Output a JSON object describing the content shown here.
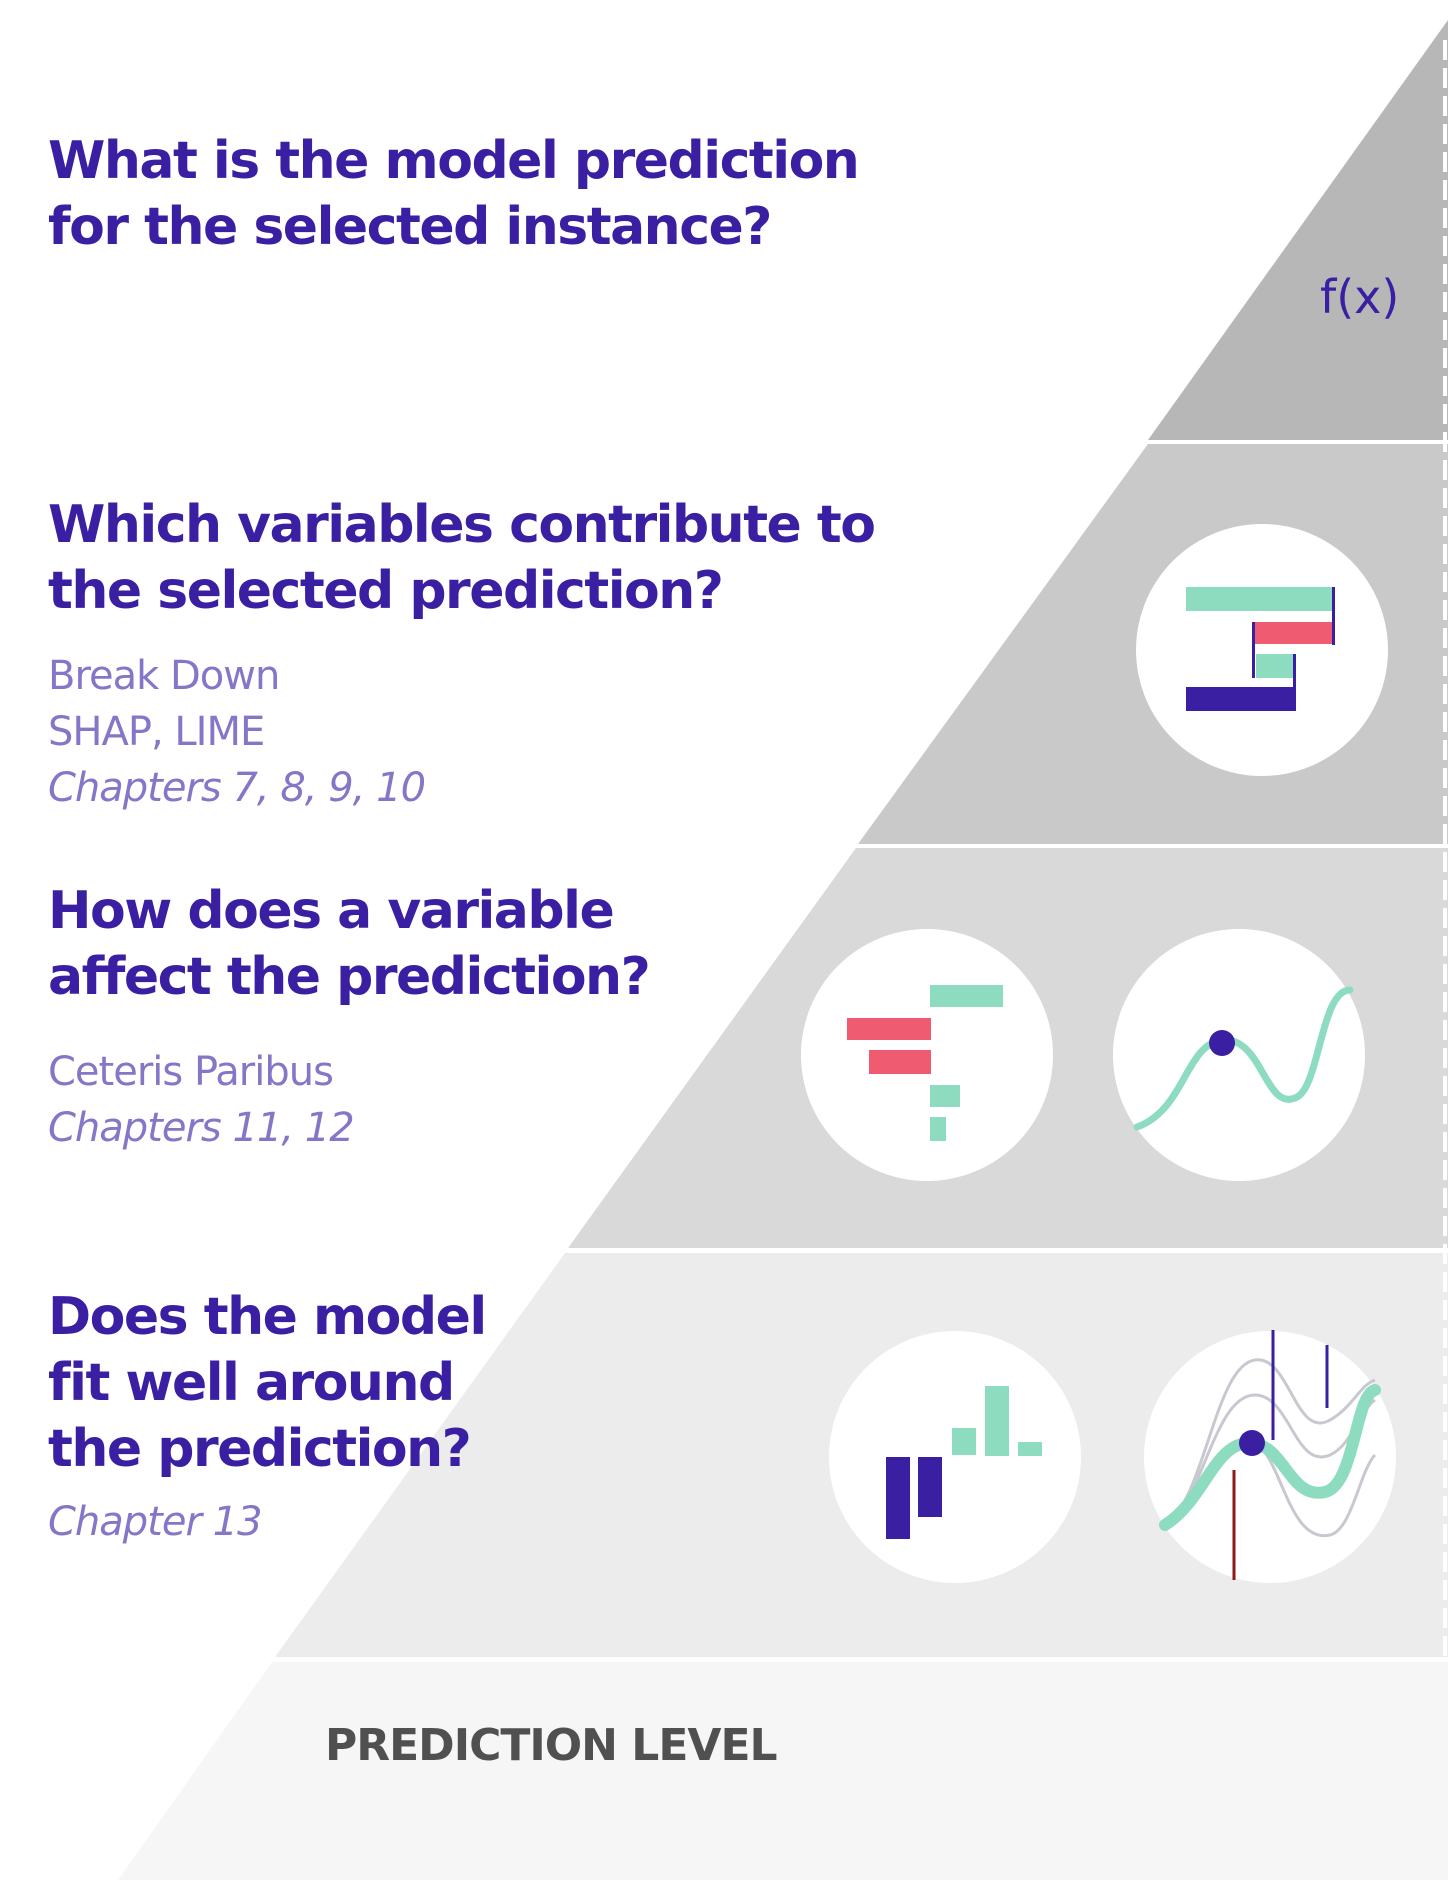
{
  "levels": [
    {
      "question_lines": [
        "What is the model prediction",
        "for the selected instance?"
      ],
      "symbol": "f(x)"
    },
    {
      "question_lines": [
        "Which variables contribute to",
        "the selected prediction?"
      ],
      "methods": [
        "Break Down",
        "SHAP, LIME"
      ],
      "chapters": "Chapters 7, 8, 9, 10",
      "icons": [
        "break-down-plot-icon"
      ]
    },
    {
      "question_lines": [
        "How does a variable",
        "affect the prediction?"
      ],
      "methods": [
        "Ceteris Paribus"
      ],
      "chapters": "Chapters 11, 12",
      "icons": [
        "cp-oscillations-bars-icon",
        "ceteris-paribus-profile-icon"
      ]
    },
    {
      "question_lines": [
        "Does the model",
        "fit well around",
        "the prediction?"
      ],
      "chapters": "Chapter 13",
      "icons": [
        "residuals-histogram-icon",
        "local-fit-profiles-icon"
      ]
    }
  ],
  "footer": {
    "label": "PREDICTION LEVEL"
  },
  "colors": {
    "title": "#3a1fa3",
    "subtitle": "#8676c8",
    "mint": "#8ddcc0",
    "red": "#ef5c72",
    "tier1": "#b7b7b7",
    "tier2": "#c9c9c9",
    "tier3": "#d9d9d9",
    "tier4": "#ececec",
    "tier5": "#f6f6f6"
  }
}
